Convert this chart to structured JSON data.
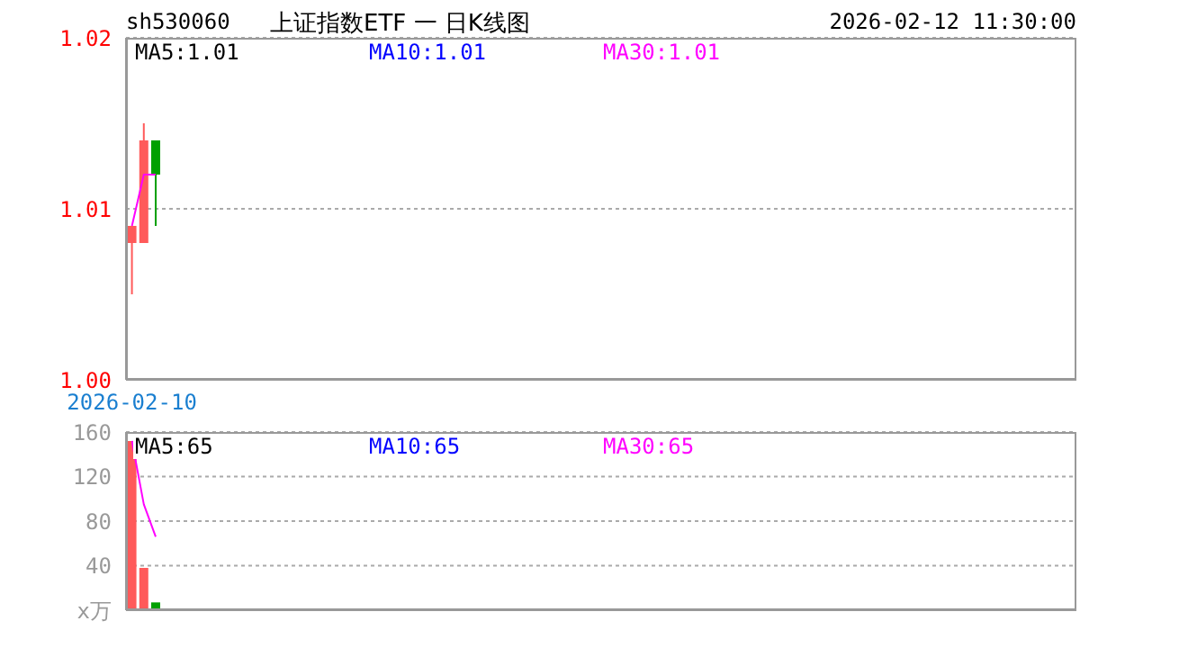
{
  "chart_data": [
    {
      "type": "candlestick",
      "title": "上证指数ETF 一 日K线图",
      "subtitle": "sh530060",
      "annotations": [
        "2026-02-12 11:30:00"
      ],
      "categories": [
        "2026-02-10",
        null,
        null,
        null,
        null,
        null,
        null,
        null,
        null,
        null,
        null,
        null,
        null,
        null,
        null,
        null,
        null,
        null,
        null,
        null,
        null,
        null,
        null,
        null,
        null,
        null,
        null,
        null,
        null,
        null,
        null,
        null,
        null,
        null,
        null,
        null,
        null,
        null,
        null,
        null,
        null,
        null,
        null,
        null,
        null,
        null,
        null,
        null,
        null,
        null,
        null,
        null,
        null,
        null,
        null,
        null,
        null,
        null,
        null,
        null,
        null,
        null,
        null,
        null,
        null,
        null,
        null,
        null,
        null,
        null,
        null,
        null,
        null,
        null,
        null,
        null,
        null,
        null,
        null,
        null
      ],
      "ohlc": [
        [
          1.008,
          1.009,
          1.005,
          1.009
        ],
        [
          1.008,
          1.015,
          1.008,
          1.014
        ],
        [
          1.014,
          1.014,
          1.009,
          1.012
        ],
        null,
        null,
        null,
        null,
        null,
        null,
        null,
        null,
        null,
        null,
        null,
        null,
        null,
        null,
        null,
        null,
        null,
        null,
        null,
        null,
        null,
        null,
        null,
        null,
        null,
        null,
        null,
        null,
        null,
        null,
        null,
        null,
        null,
        null,
        null,
        null,
        null,
        null,
        null,
        null,
        null,
        null,
        null,
        null,
        null,
        null,
        null,
        null,
        null,
        null,
        null,
        null,
        null,
        null,
        null,
        null,
        null,
        null,
        null,
        null,
        null,
        null,
        null,
        null,
        null,
        null,
        null,
        null,
        null,
        null,
        null,
        null,
        null,
        null,
        null,
        null,
        null
      ],
      "colors": [
        "#ff5a5a",
        "#ff5a5a",
        "#00a000",
        null,
        null,
        null,
        null,
        null,
        null,
        null,
        null,
        null,
        null,
        null,
        null,
        null,
        null,
        null,
        null,
        null,
        null,
        null,
        null,
        null,
        null,
        null,
        null,
        null,
        null,
        null,
        null,
        null,
        null,
        null,
        null,
        null,
        null,
        null,
        null,
        null,
        null,
        null,
        null,
        null,
        null,
        null,
        null,
        null,
        null,
        null,
        null,
        null,
        null,
        null,
        null,
        null,
        null,
        null,
        null,
        null,
        null,
        null,
        null,
        null,
        null,
        null,
        null,
        null,
        null,
        null,
        null,
        null,
        null,
        null,
        null,
        null,
        null,
        null,
        null,
        null
      ],
      "series": [
        {
          "name": "MA5:1.01",
          "type": "line",
          "color": "#000000",
          "values": [
            null,
            null,
            null,
            null,
            null,
            null,
            null,
            null,
            null,
            null,
            null,
            null,
            null,
            null,
            null,
            null,
            null,
            null,
            null,
            null,
            null,
            null,
            null,
            null,
            null,
            null,
            null,
            null,
            null,
            null,
            null,
            null,
            null,
            null,
            null,
            null,
            null,
            null,
            null,
            null,
            null,
            null,
            null,
            null,
            null,
            null,
            null,
            null,
            null,
            null,
            null,
            null,
            null,
            null,
            null,
            null,
            null,
            null,
            null,
            null,
            null,
            null,
            null,
            null,
            null,
            null,
            null,
            null,
            null,
            null,
            null,
            null,
            null,
            null,
            null,
            null,
            null,
            null,
            null,
            null
          ]
        },
        {
          "name": "MA10:1.01",
          "type": "line",
          "color": "#0000ff",
          "values": [
            null,
            null,
            null,
            null,
            null,
            null,
            null,
            null,
            null,
            null,
            null,
            null,
            null,
            null,
            null,
            null,
            null,
            null,
            null,
            null,
            null,
            null,
            null,
            null,
            null,
            null,
            null,
            null,
            null,
            null,
            null,
            null,
            null,
            null,
            null,
            null,
            null,
            null,
            null,
            null,
            null,
            null,
            null,
            null,
            null,
            null,
            null,
            null,
            null,
            null,
            null,
            null,
            null,
            null,
            null,
            null,
            null,
            null,
            null,
            null,
            null,
            null,
            null,
            null,
            null,
            null,
            null,
            null,
            null,
            null,
            null,
            null,
            null,
            null,
            null,
            null,
            null,
            null,
            null,
            null
          ]
        },
        {
          "name": "MA30:1.01",
          "type": "line",
          "color": "#ff00ff",
          "values": [
            1.009,
            1.012,
            1.012,
            null,
            null,
            null,
            null,
            null,
            null,
            null,
            null,
            null,
            null,
            null,
            null,
            null,
            null,
            null,
            null,
            null,
            null,
            null,
            null,
            null,
            null,
            null,
            null,
            null,
            null,
            null,
            null,
            null,
            null,
            null,
            null,
            null,
            null,
            null,
            null,
            null,
            null,
            null,
            null,
            null,
            null,
            null,
            null,
            null,
            null,
            null,
            null,
            null,
            null,
            null,
            null,
            null,
            null,
            null,
            null,
            null,
            null,
            null,
            null,
            null,
            null,
            null,
            null,
            null,
            null,
            null,
            null,
            null,
            null,
            null,
            null,
            null,
            null,
            null,
            null,
            null
          ]
        }
      ],
      "ylim": [
        1.0,
        1.02
      ],
      "yticks": [
        {
          "value": 1.0,
          "label": "1.00"
        },
        1.01,
        1.02
      ],
      "grid": "y",
      "legend": "top"
    },
    {
      "type": "bar",
      "categories": [
        null,
        null,
        null,
        null,
        null,
        null,
        null,
        null,
        null,
        null,
        null,
        null,
        null,
        null,
        null,
        null,
        null,
        null,
        null,
        null,
        null,
        null,
        null,
        null,
        null,
        null,
        null,
        null,
        null,
        null,
        null,
        null,
        null,
        null,
        null,
        null,
        null,
        null,
        null,
        null,
        null,
        null,
        null,
        null,
        null,
        null,
        null,
        null,
        null,
        null,
        null,
        null,
        null,
        null,
        null,
        null,
        null,
        null,
        null,
        null,
        null,
        null,
        null,
        null,
        null,
        null,
        null,
        null,
        null,
        null,
        null,
        null,
        null,
        null,
        null,
        null,
        null,
        null,
        null,
        null
      ],
      "series": [
        {
          "type": "bar",
          "values": [
            152,
            38,
            7,
            null,
            null,
            null,
            null,
            null,
            null,
            null,
            null,
            null,
            null,
            null,
            null,
            null,
            null,
            null,
            null,
            null,
            null,
            null,
            null,
            null,
            null,
            null,
            null,
            null,
            null,
            null,
            null,
            null,
            null,
            null,
            null,
            null,
            null,
            null,
            null,
            null,
            null,
            null,
            null,
            null,
            null,
            null,
            null,
            null,
            null,
            null,
            null,
            null,
            null,
            null,
            null,
            null,
            null,
            null,
            null,
            null,
            null,
            null,
            null,
            null,
            null,
            null,
            null,
            null,
            null,
            null,
            null,
            null,
            null,
            null,
            null,
            null,
            null,
            null,
            null,
            null
          ],
          "colors": [
            "#ff5a5a",
            "#ff5a5a",
            "#00a000",
            null,
            null,
            null,
            null,
            null,
            null,
            null,
            null,
            null,
            null,
            null,
            null,
            null,
            null,
            null,
            null,
            null,
            null,
            null,
            null,
            null,
            null,
            null,
            null,
            null,
            null,
            null,
            null,
            null,
            null,
            null,
            null,
            null,
            null,
            null,
            null,
            null,
            null,
            null,
            null,
            null,
            null,
            null,
            null,
            null,
            null,
            null,
            null,
            null,
            null,
            null,
            null,
            null,
            null,
            null,
            null,
            null,
            null,
            null,
            null,
            null,
            null,
            null,
            null,
            null,
            null,
            null,
            null,
            null,
            null,
            null,
            null,
            null,
            null,
            null,
            null,
            null
          ]
        },
        {
          "name": "MA5:65",
          "type": "line",
          "color": "#000000",
          "values": [
            null,
            null,
            null,
            null,
            null,
            null,
            null,
            null,
            null,
            null,
            null,
            null,
            null,
            null,
            null,
            null,
            null,
            null,
            null,
            null,
            null,
            null,
            null,
            null,
            null,
            null,
            null,
            null,
            null,
            null,
            null,
            null,
            null,
            null,
            null,
            null,
            null,
            null,
            null,
            null,
            null,
            null,
            null,
            null,
            null,
            null,
            null,
            null,
            null,
            null,
            null,
            null,
            null,
            null,
            null,
            null,
            null,
            null,
            null,
            null,
            null,
            null,
            null,
            null,
            null,
            null,
            null,
            null,
            null,
            null,
            null,
            null,
            null,
            null,
            null,
            null,
            null,
            null,
            null,
            null
          ]
        },
        {
          "name": "MA10:65",
          "type": "line",
          "color": "#0000ff",
          "values": [
            null,
            null,
            null,
            null,
            null,
            null,
            null,
            null,
            null,
            null,
            null,
            null,
            null,
            null,
            null,
            null,
            null,
            null,
            null,
            null,
            null,
            null,
            null,
            null,
            null,
            null,
            null,
            null,
            null,
            null,
            null,
            null,
            null,
            null,
            null,
            null,
            null,
            null,
            null,
            null,
            null,
            null,
            null,
            null,
            null,
            null,
            null,
            null,
            null,
            null,
            null,
            null,
            null,
            null,
            null,
            null,
            null,
            null,
            null,
            null,
            null,
            null,
            null,
            null,
            null,
            null,
            null,
            null,
            null,
            null,
            null,
            null,
            null,
            null,
            null,
            null,
            null,
            null,
            null,
            null
          ]
        },
        {
          "name": "MA30:65",
          "type": "line",
          "color": "#ff00ff",
          "values": [
            152,
            95,
            66,
            null,
            null,
            null,
            null,
            null,
            null,
            null,
            null,
            null,
            null,
            null,
            null,
            null,
            null,
            null,
            null,
            null,
            null,
            null,
            null,
            null,
            null,
            null,
            null,
            null,
            null,
            null,
            null,
            null,
            null,
            null,
            null,
            null,
            null,
            null,
            null,
            null,
            null,
            null,
            null,
            null,
            null,
            null,
            null,
            null,
            null,
            null,
            null,
            null,
            null,
            null,
            null,
            null,
            null,
            null,
            null,
            null,
            null,
            null,
            null,
            null,
            null,
            null,
            null,
            null,
            null,
            null,
            null,
            null,
            null,
            null,
            null,
            null,
            null,
            null,
            null,
            null
          ]
        }
      ],
      "ylim": [
        0,
        160
      ],
      "yticks": [
        {
          "value": 0,
          "label": "x万"
        },
        40,
        80,
        120,
        160
      ],
      "grid": "y",
      "legend": "top",
      "tick_labels": "y"
    }
  ]
}
